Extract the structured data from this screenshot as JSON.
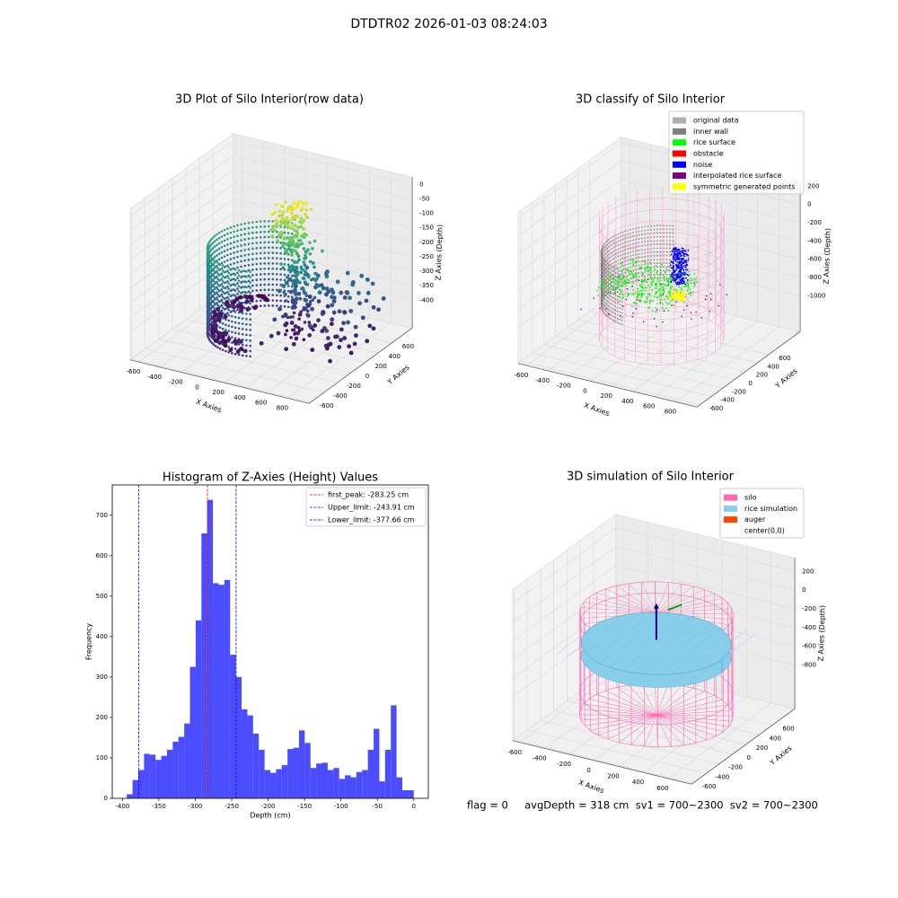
{
  "suptitle": "DTDTR02 2026-01-03 08:24:03",
  "footer": "flag = 0     avgDepth = 318 cm  sv1 = 700~2300  sv2 = 700~2300",
  "chart_data": [
    {
      "type": "scatter3d",
      "title": "3D Plot of Silo Interior(row data)",
      "xlabel": "X Axies",
      "ylabel": "Y Axies",
      "zlabel": "Z Axies (Depth)",
      "xlim": [
        -680,
        1000
      ],
      "ylim": [
        -620,
        900
      ],
      "zlim": [
        -496,
        25
      ],
      "xticks": [
        -600,
        -400,
        -200,
        0,
        200,
        400,
        600,
        800
      ],
      "yticks": [
        -600,
        -400,
        -200,
        0,
        200,
        400,
        600
      ],
      "zticks": [
        0,
        -50,
        -100,
        -150,
        -200,
        -250,
        -300,
        -350,
        -400
      ],
      "grid": true
    },
    {
      "type": "classify3d",
      "title": "3D classify of Silo Interior",
      "xlabel": "X Axies",
      "ylabel": "Y Axies",
      "zlabel": "Z Axies (Depth)",
      "xlim": [
        -680,
        1000
      ],
      "ylim": [
        -650,
        1150
      ],
      "zlim": [
        -1393,
        260
      ],
      "xticks": [
        -600,
        -400,
        -200,
        0,
        200,
        400,
        600,
        800
      ],
      "yticks": [
        -600,
        -400,
        -200,
        0,
        200,
        400,
        600
      ],
      "zticks": [
        200,
        0,
        -200,
        -400,
        -600,
        -800,
        -1000
      ],
      "grid": true,
      "legend": [
        {
          "name": "original data",
          "color": "#b0b0b0"
        },
        {
          "name": "inner wall",
          "color": "#808080"
        },
        {
          "name": "rice surface",
          "color": "#00ff00"
        },
        {
          "name": "obstacle",
          "color": "#ff0000"
        },
        {
          "name": "noise",
          "color": "#0000ff"
        },
        {
          "name": "interpolated rice surface",
          "color": "#800080"
        },
        {
          "name": "symmetric generated points",
          "color": "#ffff00"
        }
      ],
      "legend_loc": "upper right"
    },
    {
      "type": "histogram",
      "title": "Histogram of Z-Axies (Height) Values",
      "xlabel": "Depth (cm)",
      "ylabel": "Frequency",
      "bins": [
        -394,
        -386.12,
        -378.24,
        -370.36,
        -362.48,
        -354.6,
        -346.72,
        -338.84,
        -330.96,
        -323.08,
        -315.2,
        -307.32,
        -299.44,
        -291.56,
        -283.68,
        -275.8,
        -267.92,
        -260.04,
        -252.16,
        -244.28,
        -236.4,
        -228.52,
        -220.64,
        -212.76,
        -204.88,
        -197,
        -189.12,
        -181.24,
        -173.36,
        -165.48,
        -157.6,
        -149.72,
        -141.84,
        -133.96,
        -126.08,
        -118.2,
        -110.32,
        -102.44,
        -94.56,
        -86.68,
        -78.8,
        -70.92,
        -63.04,
        -55.16,
        -47.28,
        -39.4,
        -31.52,
        -23.64,
        -15.76,
        -7.88,
        0
      ],
      "counts": [
        10,
        45,
        70,
        110,
        108,
        95,
        105,
        120,
        140,
        152,
        185,
        325,
        440,
        655,
        738,
        532,
        528,
        540,
        355,
        300,
        220,
        205,
        160,
        120,
        70,
        63,
        72,
        82,
        122,
        125,
        168,
        137,
        75,
        86,
        88,
        70,
        75,
        48,
        57,
        52,
        65,
        70,
        120,
        172,
        42,
        120,
        230,
        52,
        20,
        20
      ],
      "color": "#0000ff",
      "alpha": 0.7,
      "xlim": [
        -414,
        20
      ],
      "ylim": [
        0,
        775
      ],
      "xticks": [
        -400,
        -350,
        -300,
        -250,
        -200,
        -150,
        -100,
        -50,
        0
      ],
      "yticks": [
        0,
        100,
        200,
        300,
        400,
        500,
        600,
        700
      ],
      "lines": [
        {
          "name": "first_peak: -283.25 cm",
          "value": -283.25,
          "color": "#ff0000"
        },
        {
          "name": "Upper_limit: -243.91 cm",
          "value": -243.91,
          "color": "#0000ff"
        },
        {
          "name": "Lower_limit: -377.66 cm",
          "value": -377.66,
          "color": "#0000ff"
        }
      ],
      "legend_loc": "upper right"
    },
    {
      "type": "surface3d",
      "title": "3D simulation of Silo Interior",
      "xlabel": "X Axies",
      "ylabel": "Y Axies",
      "zlabel": "Z Axies (Depth)",
      "xlim": [
        -660,
        790
      ],
      "ylim": [
        -620,
        940
      ],
      "zlim": [
        -1268,
        345
      ],
      "xticks": [
        -600,
        -400,
        -200,
        0,
        200,
        400,
        600
      ],
      "yticks": [
        -600,
        -400,
        -200,
        0,
        200,
        400,
        600
      ],
      "zticks": [
        200,
        0,
        -200,
        -400,
        -600,
        -800
      ],
      "grid": true,
      "legend": [
        {
          "name": "silo",
          "color": "#ff69b4"
        },
        {
          "name": "rice simulation",
          "color": "#87ceeb"
        },
        {
          "name": "auger",
          "color": "#ff4500"
        },
        {
          "name": "center(0,0)",
          "color": "#ffffff"
        }
      ],
      "legend_loc": "upper right"
    }
  ]
}
